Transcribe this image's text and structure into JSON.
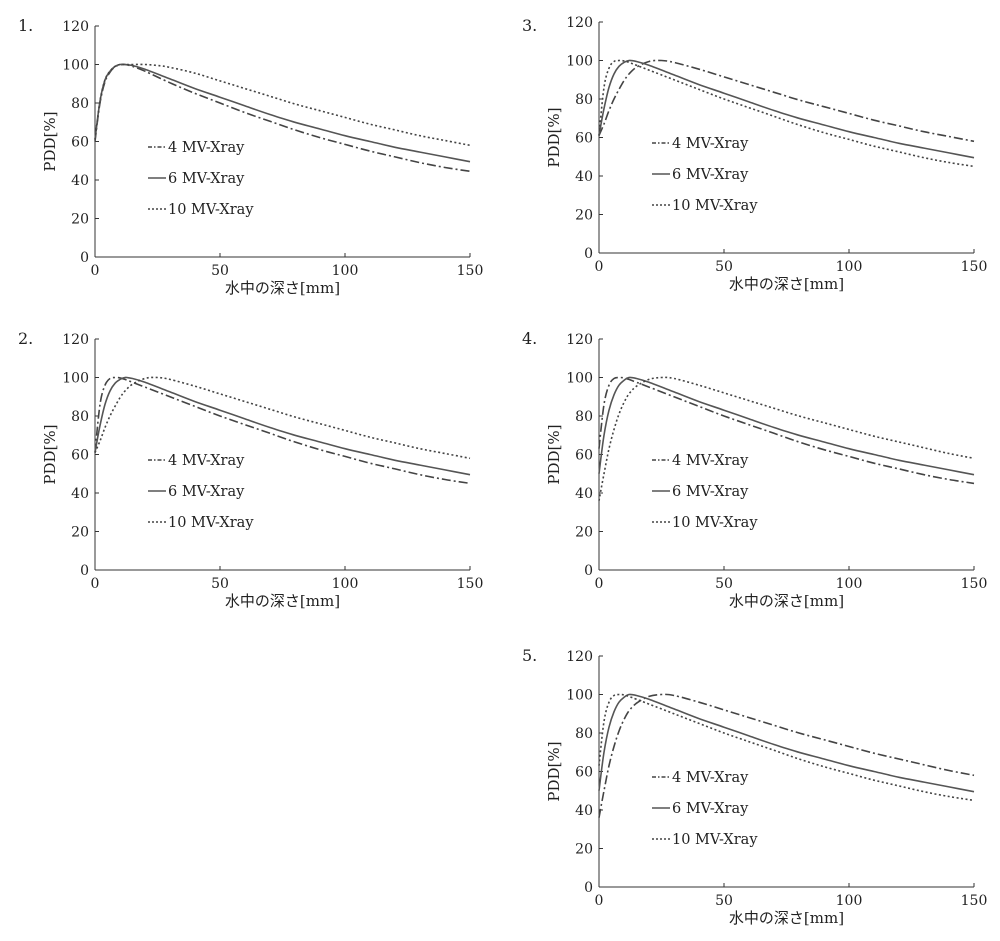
{
  "chart_data": [
    {
      "type": "line",
      "panel_number": "1.",
      "xlabel": "水中の深さ[mm]",
      "ylabel": "PDD[%]",
      "xlim": [
        0,
        150
      ],
      "ylim": [
        0,
        120
      ],
      "xticks": [
        "0",
        "50",
        "100",
        "150"
      ],
      "yticks": [
        "0",
        "20",
        "40",
        "60",
        "80",
        "100",
        "120"
      ],
      "legend_placement": "middle-left",
      "series": [
        {
          "name": "4 MV-Xray",
          "line_style": "dash-dot",
          "x": [
            0,
            2,
            4,
            6,
            8,
            10,
            12,
            15,
            20,
            30,
            40,
            50,
            60,
            70,
            80,
            90,
            100,
            110,
            120,
            130,
            140,
            150
          ],
          "y": [
            60,
            80,
            91,
            96,
            98.8,
            99.8,
            100,
            99,
            96.5,
            90.5,
            85,
            80,
            75,
            70.5,
            66,
            62,
            58.5,
            55,
            52,
            49,
            46.5,
            44.5
          ]
        },
        {
          "name": "6 MV-Xray",
          "line_style": "solid",
          "x": [
            0,
            2,
            4,
            6,
            8,
            10,
            12,
            15,
            20,
            30,
            40,
            50,
            60,
            70,
            80,
            90,
            100,
            110,
            120,
            130,
            140,
            150
          ],
          "y": [
            61,
            81,
            92,
            96.5,
            99,
            100,
            100,
            99.5,
            97.5,
            92.5,
            87.5,
            83,
            78.5,
            74,
            70,
            66.5,
            63,
            60,
            57,
            54.5,
            52,
            49.5
          ]
        },
        {
          "name": "10 MV-Xray",
          "line_style": "dotted",
          "x": [
            0,
            2,
            4,
            6,
            8,
            10,
            12,
            15,
            20,
            25,
            30,
            40,
            50,
            60,
            70,
            80,
            90,
            100,
            110,
            120,
            130,
            140,
            150
          ],
          "y": [
            61,
            81,
            92,
            96.5,
            99,
            100,
            100,
            100,
            100,
            99.5,
            98.5,
            95.5,
            91.5,
            87.5,
            83.5,
            79.5,
            76,
            72.5,
            69,
            66,
            63,
            60.5,
            58
          ]
        }
      ]
    },
    {
      "type": "line",
      "panel_number": "2.",
      "xlabel": "水中の深さ[mm]",
      "ylabel": "PDD[%]",
      "xlim": [
        0,
        150
      ],
      "ylim": [
        0,
        120
      ],
      "xticks": [
        "0",
        "50",
        "100",
        "150"
      ],
      "yticks": [
        "0",
        "20",
        "40",
        "60",
        "80",
        "100",
        "120"
      ],
      "legend_placement": "middle-left",
      "series": [
        {
          "name": "4 MV-Xray",
          "line_style": "dash-dot",
          "x": [
            0,
            2,
            4,
            6,
            8,
            10,
            12,
            15,
            20,
            30,
            40,
            50,
            60,
            70,
            80,
            90,
            100,
            110,
            120,
            130,
            140,
            150
          ],
          "y": [
            61,
            86,
            96,
            99.5,
            100,
            99.8,
            99,
            97.5,
            95,
            90,
            85,
            80,
            75.5,
            71,
            66.5,
            62.5,
            59,
            55.5,
            52.5,
            49.5,
            47,
            45
          ]
        },
        {
          "name": "6 MV-Xray",
          "line_style": "solid",
          "x": [
            0,
            2,
            4,
            6,
            8,
            10,
            12,
            15,
            20,
            30,
            40,
            50,
            60,
            70,
            80,
            90,
            100,
            110,
            120,
            130,
            140,
            150
          ],
          "y": [
            61,
            75,
            86,
            93,
            97,
            99,
            100,
            99.5,
            97.5,
            92.5,
            87.5,
            83,
            78.5,
            74,
            70,
            66.5,
            63,
            60,
            57,
            54.5,
            52,
            49.5
          ]
        },
        {
          "name": "10 MV-Xray",
          "line_style": "dotted",
          "x": [
            0,
            2,
            4,
            6,
            8,
            10,
            12,
            15,
            20,
            25,
            30,
            40,
            50,
            60,
            70,
            80,
            90,
            100,
            110,
            120,
            130,
            140,
            150
          ],
          "y": [
            61,
            67,
            74,
            80,
            85,
            89.5,
            93,
            96.5,
            99.5,
            100,
            99,
            95.5,
            91.5,
            87.5,
            83.5,
            79.5,
            76,
            72.5,
            69,
            66,
            63,
            60.5,
            58
          ]
        }
      ]
    },
    {
      "type": "line",
      "panel_number": "3.",
      "xlabel": "水中の深さ[mm]",
      "ylabel": "PDD[%]",
      "xlim": [
        0,
        150
      ],
      "ylim": [
        0,
        120
      ],
      "xticks": [
        "0",
        "50",
        "100",
        "150"
      ],
      "yticks": [
        "0",
        "20",
        "40",
        "60",
        "80",
        "100",
        "120"
      ],
      "legend_placement": "middle-left",
      "series": [
        {
          "name": "4 MV-Xray",
          "line_style": "dash-dot",
          "x": [
            0,
            2,
            4,
            6,
            8,
            10,
            12,
            15,
            20,
            25,
            30,
            40,
            50,
            60,
            70,
            80,
            90,
            100,
            110,
            120,
            130,
            140,
            150
          ],
          "y": [
            61,
            67,
            74,
            80,
            85,
            89.5,
            93,
            96.5,
            99.5,
            100,
            99,
            95.5,
            91.5,
            87.5,
            83.5,
            79.5,
            76,
            72.5,
            69,
            66,
            63,
            60.5,
            58
          ]
        },
        {
          "name": "6 MV-Xray",
          "line_style": "solid",
          "x": [
            0,
            2,
            4,
            6,
            8,
            10,
            12,
            15,
            20,
            30,
            40,
            50,
            60,
            70,
            80,
            90,
            100,
            110,
            120,
            130,
            140,
            150
          ],
          "y": [
            61,
            75,
            86,
            93,
            97,
            99,
            100,
            99.5,
            97.5,
            92.5,
            87.5,
            83,
            78.5,
            74,
            70,
            66.5,
            63,
            60,
            57,
            54.5,
            52,
            49.5
          ]
        },
        {
          "name": "10 MV-Xray",
          "line_style": "dotted",
          "x": [
            0,
            2,
            4,
            6,
            8,
            10,
            12,
            15,
            20,
            30,
            40,
            50,
            60,
            70,
            80,
            90,
            100,
            110,
            120,
            130,
            140,
            150
          ],
          "y": [
            61,
            86,
            96,
            99.5,
            100,
            99.8,
            99,
            97.5,
            95,
            90,
            85,
            80,
            75.5,
            71,
            66.5,
            62.5,
            59,
            55.5,
            52.5,
            49.5,
            47,
            45
          ]
        }
      ]
    },
    {
      "type": "line",
      "panel_number": "4.",
      "xlabel": "水中の深さ[mm]",
      "ylabel": "PDD[%]",
      "xlim": [
        0,
        150
      ],
      "ylim": [
        0,
        120
      ],
      "xticks": [
        "0",
        "50",
        "100",
        "150"
      ],
      "yticks": [
        "0",
        "20",
        "40",
        "60",
        "80",
        "100",
        "120"
      ],
      "legend_placement": "middle-left",
      "series": [
        {
          "name": "4 MV-Xray",
          "line_style": "dash-dot",
          "x": [
            0,
            2,
            4,
            6,
            8,
            10,
            12,
            15,
            20,
            30,
            40,
            50,
            60,
            70,
            80,
            90,
            100,
            110,
            120,
            130,
            140,
            150
          ],
          "y": [
            63,
            86,
            96,
            99.5,
            100,
            99.8,
            99,
            97.5,
            95,
            90,
            85,
            80,
            75.5,
            71,
            66.5,
            62.5,
            59,
            55.5,
            52.5,
            49.5,
            47,
            45
          ]
        },
        {
          "name": "6 MV-Xray",
          "line_style": "solid",
          "x": [
            0,
            2,
            4,
            6,
            8,
            10,
            12,
            15,
            20,
            30,
            40,
            50,
            60,
            70,
            80,
            90,
            100,
            110,
            120,
            130,
            140,
            150
          ],
          "y": [
            50,
            70,
            83,
            91,
            96,
            98.5,
            100,
            99.5,
            97.5,
            92.5,
            87.5,
            83,
            78.5,
            74,
            70,
            66.5,
            63,
            60,
            57,
            54.5,
            52,
            49.5
          ]
        },
        {
          "name": "10 MV-Xray",
          "line_style": "dotted",
          "x": [
            0,
            2,
            4,
            6,
            8,
            10,
            12,
            15,
            20,
            25,
            30,
            40,
            50,
            60,
            70,
            80,
            90,
            100,
            110,
            120,
            130,
            140,
            150
          ],
          "y": [
            36,
            50,
            63,
            73,
            81,
            87,
            91.5,
            95.5,
            99,
            100,
            99.5,
            96,
            92,
            88,
            84,
            80,
            76.5,
            73,
            69.5,
            66.5,
            63.5,
            60.5,
            58
          ]
        }
      ]
    },
    {
      "type": "line",
      "panel_number": "5.",
      "xlabel": "水中の深さ[mm]",
      "ylabel": "PDD[%]",
      "xlim": [
        0,
        150
      ],
      "ylim": [
        0,
        120
      ],
      "xticks": [
        "0",
        "50",
        "100",
        "150"
      ],
      "yticks": [
        "0",
        "20",
        "40",
        "60",
        "80",
        "100",
        "120"
      ],
      "legend_placement": "middle-left",
      "series": [
        {
          "name": "4 MV-Xray",
          "line_style": "dash-dot",
          "x": [
            0,
            2,
            4,
            6,
            8,
            10,
            12,
            15,
            20,
            25,
            30,
            40,
            50,
            60,
            70,
            80,
            90,
            100,
            110,
            120,
            130,
            140,
            150
          ],
          "y": [
            36,
            50,
            63,
            73,
            81,
            87,
            91.5,
            95.5,
            99,
            100,
            99.5,
            96,
            92,
            88,
            84,
            80,
            76.5,
            73,
            69.5,
            66.5,
            63.5,
            60.5,
            58
          ]
        },
        {
          "name": "6 MV-Xray",
          "line_style": "solid",
          "x": [
            0,
            2,
            4,
            6,
            8,
            10,
            12,
            15,
            20,
            30,
            40,
            50,
            60,
            70,
            80,
            90,
            100,
            110,
            120,
            130,
            140,
            150
          ],
          "y": [
            50,
            70,
            83,
            91,
            96,
            98.5,
            100,
            99.5,
            97.5,
            92.5,
            87.5,
            83,
            78.5,
            74,
            70,
            66.5,
            63,
            60,
            57,
            54.5,
            52,
            49.5
          ]
        },
        {
          "name": "10 MV-Xray",
          "line_style": "dotted",
          "x": [
            0,
            2,
            4,
            6,
            8,
            10,
            12,
            15,
            20,
            30,
            40,
            50,
            60,
            70,
            80,
            90,
            100,
            110,
            120,
            130,
            140,
            150
          ],
          "y": [
            63,
            86,
            96,
            99.5,
            100,
            99.8,
            99,
            97.5,
            95,
            90,
            85,
            80,
            75.5,
            71,
            66.5,
            62.5,
            59,
            55.5,
            52.5,
            49.5,
            47,
            45
          ]
        }
      ]
    }
  ]
}
